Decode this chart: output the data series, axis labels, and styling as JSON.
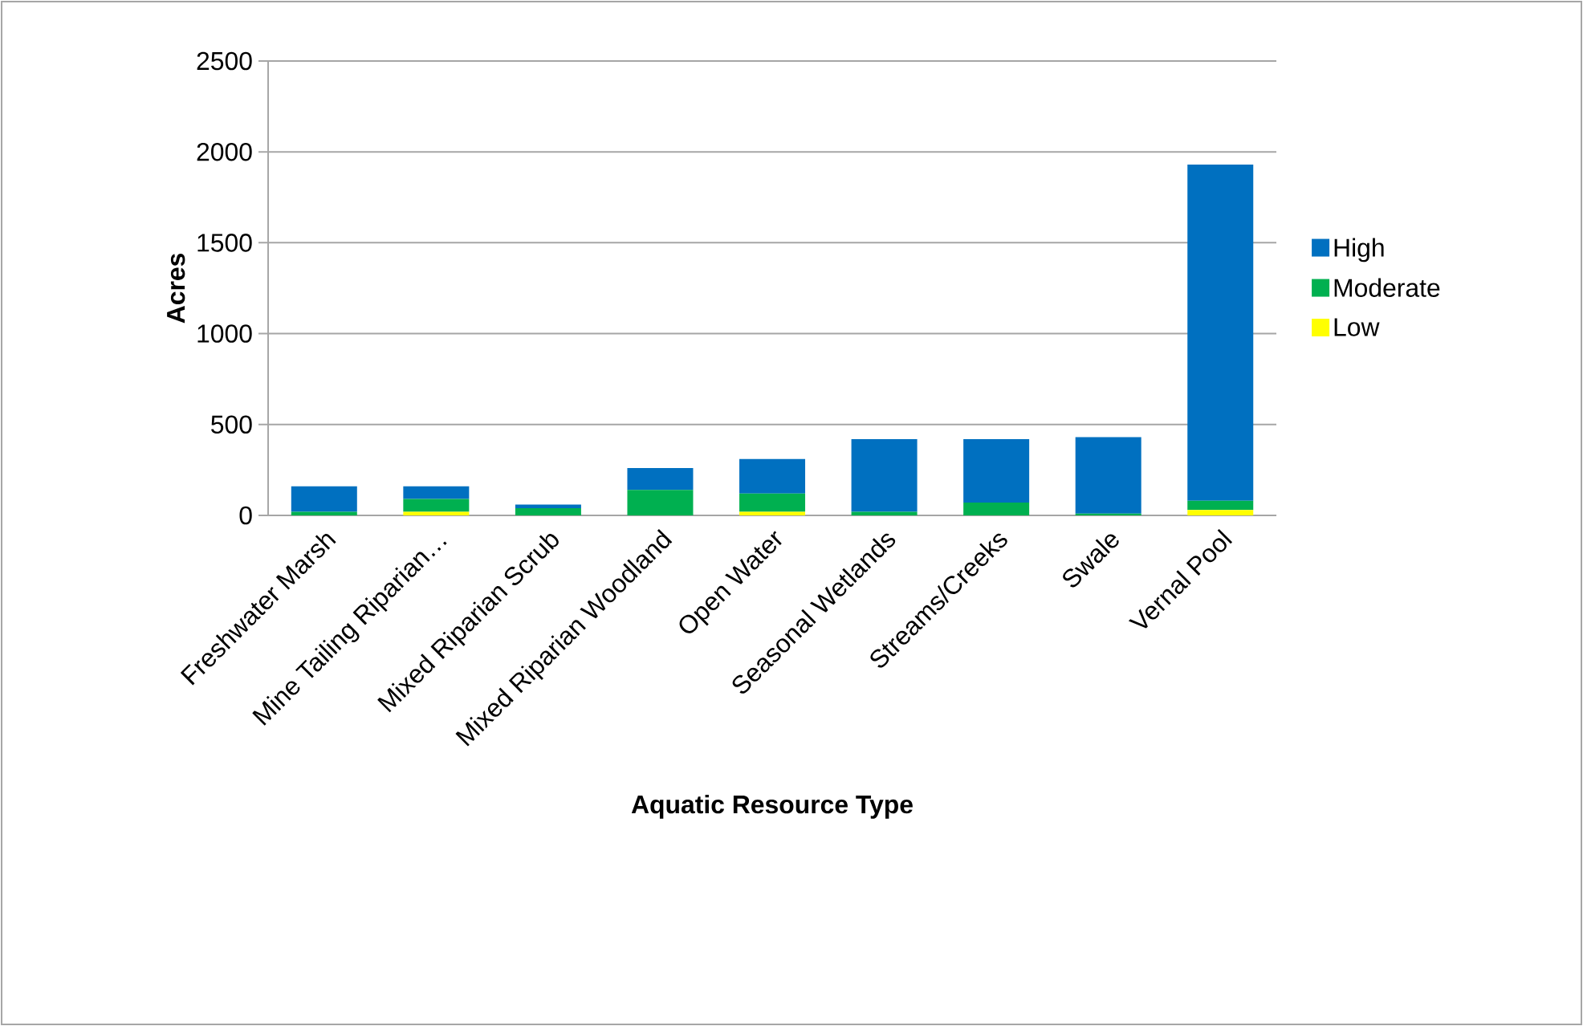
{
  "chart_data": {
    "type": "bar",
    "stacked": true,
    "xlabel": "Aquatic Resource Type",
    "ylabel": "Acres",
    "categories": [
      "Freshwater Marsh",
      "Mine Tailing Riparian…",
      "Mixed Riparian Scrub",
      "Mixed Riparian Woodland",
      "Open Water",
      "Seasonal Wetlands",
      "Streams/Creeks",
      "Swale",
      "Vernal Pool"
    ],
    "series": [
      {
        "name": "Low",
        "color": "#ffff00",
        "values": [
          0,
          20,
          0,
          0,
          20,
          0,
          0,
          0,
          30
        ]
      },
      {
        "name": "Moderate",
        "color": "#00b050",
        "values": [
          20,
          70,
          40,
          140,
          100,
          20,
          70,
          10,
          50
        ]
      },
      {
        "name": "High",
        "color": "#0070c0",
        "values": [
          140,
          70,
          20,
          120,
          190,
          400,
          350,
          420,
          1850
        ]
      }
    ],
    "ylim": [
      0,
      2500
    ],
    "yticks": [
      0,
      500,
      1000,
      1500,
      2000,
      2500
    ],
    "grid": "y",
    "legend": "right"
  }
}
